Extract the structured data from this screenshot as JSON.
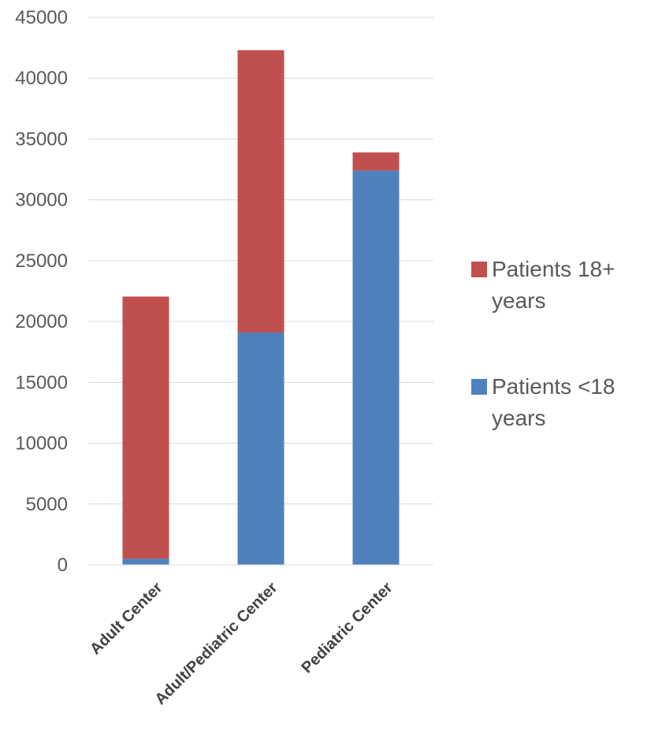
{
  "chart_data": {
    "type": "bar",
    "stacked": true,
    "title": "",
    "xlabel": "",
    "ylabel": "",
    "ylim": [
      0,
      45000
    ],
    "yticks": [
      0,
      5000,
      10000,
      15000,
      20000,
      25000,
      30000,
      35000,
      40000,
      45000
    ],
    "grid": true,
    "legend_position": "right",
    "categories": [
      "Adult Center",
      "Adult/Pediatric Center",
      "Pediatric Center"
    ],
    "series": [
      {
        "name": "Patients <18 years",
        "color": "#4F81BD",
        "values": [
          500,
          19100,
          32400
        ]
      },
      {
        "name": "Patients 18+ years",
        "color": "#C0504D",
        "values": [
          21550,
          23200,
          1500
        ]
      }
    ]
  },
  "legend": {
    "items": [
      {
        "label": "Patients 18+ years",
        "color": "#C0504D"
      },
      {
        "label": "Patients <18 years",
        "color": "#4F81BD"
      }
    ]
  }
}
